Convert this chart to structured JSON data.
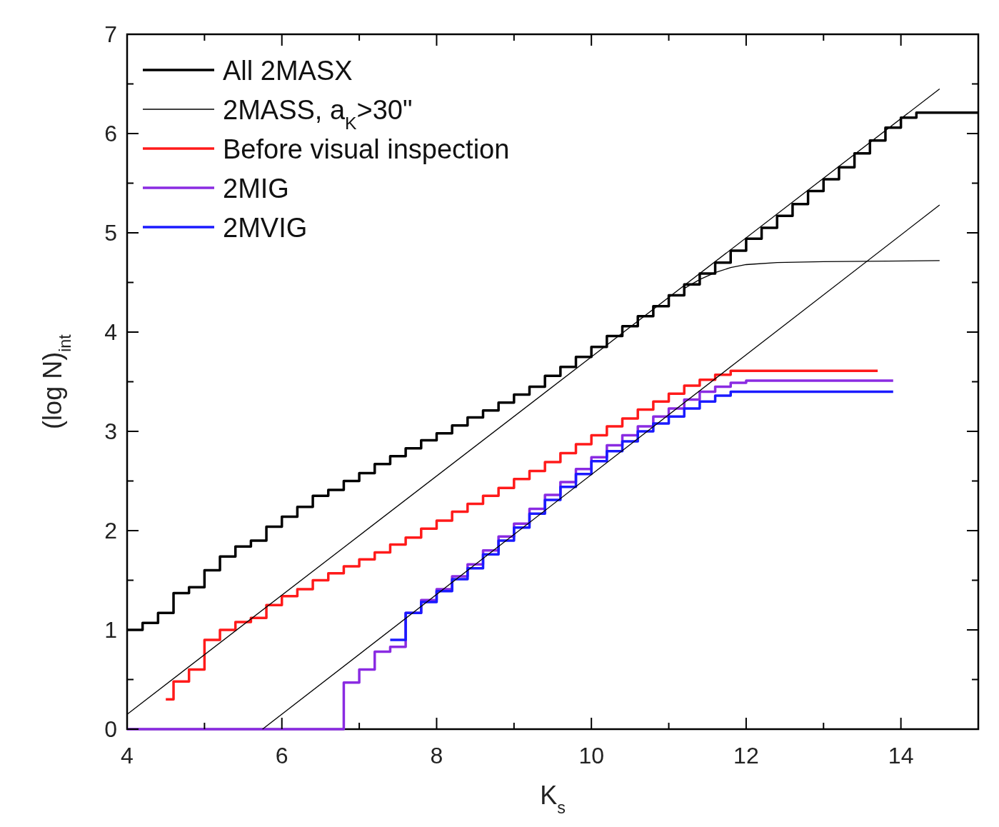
{
  "chart_data": {
    "type": "step",
    "xlabel": "K$_{s}$",
    "ylabel": "(log N)$_{int}$",
    "xlim": [
      4,
      15
    ],
    "ylim": [
      0,
      7
    ],
    "xticks": [
      4,
      {
        "value": 5,
        "label": null
      },
      6,
      {
        "value": 7,
        "label": null
      },
      8,
      {
        "value": 9,
        "label": null
      },
      10,
      {
        "value": 11,
        "label": null
      },
      12,
      {
        "value": 13,
        "label": null
      },
      14,
      {
        "value": 15,
        "label": null
      }
    ],
    "yticks": [
      0,
      {
        "value": 0.5,
        "label": null
      },
      1,
      {
        "value": 1.5,
        "label": null
      },
      2,
      {
        "value": 2.5,
        "label": null
      },
      3,
      {
        "value": 3.5,
        "label": null
      },
      4,
      {
        "value": 4.5,
        "label": null
      },
      5,
      {
        "value": 5.5,
        "label": null
      },
      6,
      {
        "value": 6.5,
        "label": null
      },
      7
    ],
    "legend": "top left",
    "grid": false,
    "series": [
      {
        "name": "All 2MASX",
        "color": "#000000",
        "x": [
          4,
          4.2,
          4.4,
          4.6,
          4.8,
          5,
          5.2,
          5.4,
          5.6,
          5.8,
          6,
          6.2,
          6.4,
          6.6,
          6.8,
          7,
          7.2,
          7.4,
          7.6,
          7.8,
          8,
          8.2,
          8.4,
          8.6,
          8.8,
          9,
          9.2,
          9.4,
          9.6,
          9.8,
          10,
          10.2,
          10.4,
          10.6,
          10.8,
          11,
          11.2,
          11.4,
          11.6,
          11.8,
          12,
          12.2,
          12.4,
          12.6,
          12.8,
          13,
          13.2,
          13.4,
          13.6,
          13.8,
          14,
          14.2,
          15
        ],
        "values": [
          1.0,
          1.07,
          1.17,
          1.37,
          1.43,
          1.6,
          1.74,
          1.84,
          1.9,
          2.04,
          2.14,
          2.24,
          2.35,
          2.41,
          2.5,
          2.58,
          2.67,
          2.75,
          2.83,
          2.91,
          2.98,
          3.06,
          3.14,
          3.21,
          3.29,
          3.37,
          3.45,
          3.56,
          3.65,
          3.75,
          3.85,
          3.96,
          4.06,
          4.16,
          4.26,
          4.37,
          4.48,
          4.59,
          4.7,
          4.82,
          4.94,
          5.05,
          5.17,
          5.29,
          5.42,
          5.54,
          5.66,
          5.8,
          5.93,
          6.06,
          6.16,
          6.21,
          6.21
        ]
      },
      {
        "name": "2MASS, a$_{K}$>30\"",
        "type": "line",
        "color": "#000000",
        "x": [
          11.2,
          11.4,
          11.6,
          11.8,
          12,
          12.4,
          13,
          14.5
        ],
        "values": [
          4.44,
          4.53,
          4.6,
          4.65,
          4.68,
          4.7,
          4.71,
          4.72
        ]
      },
      {
        "name": "Before visual inspection",
        "color": "#ff1a1a",
        "x": [
          4.5,
          4.6,
          4.8,
          5,
          5.2,
          5.4,
          5.6,
          5.8,
          6,
          6.2,
          6.4,
          6.6,
          6.8,
          7,
          7.2,
          7.4,
          7.6,
          7.8,
          8,
          8.2,
          8.4,
          8.6,
          8.8,
          9,
          9.2,
          9.4,
          9.6,
          9.8,
          10,
          10.2,
          10.4,
          10.6,
          10.8,
          11,
          11.2,
          11.4,
          11.6,
          11.8,
          13.7
        ],
        "values": [
          0.3,
          0.48,
          0.6,
          0.9,
          1.0,
          1.08,
          1.12,
          1.25,
          1.34,
          1.41,
          1.5,
          1.57,
          1.64,
          1.71,
          1.78,
          1.86,
          1.93,
          2.02,
          2.1,
          2.19,
          2.27,
          2.35,
          2.43,
          2.52,
          2.6,
          2.69,
          2.78,
          2.87,
          2.96,
          3.05,
          3.13,
          3.22,
          3.3,
          3.38,
          3.46,
          3.52,
          3.57,
          3.61,
          3.61
        ]
      },
      {
        "name": "2MIG",
        "color": "#8a2be2",
        "x": [
          4,
          6.8,
          7,
          7.2,
          7.4,
          7.6,
          7.8,
          8,
          8.2,
          8.4,
          8.6,
          8.8,
          9,
          9.2,
          9.4,
          9.6,
          9.8,
          10,
          10.2,
          10.4,
          10.6,
          10.8,
          11,
          11.2,
          11.4,
          11.6,
          11.8,
          12,
          13.9
        ],
        "values": [
          0,
          0.47,
          0.6,
          0.78,
          0.83,
          1.17,
          1.3,
          1.41,
          1.54,
          1.66,
          1.8,
          1.94,
          2.07,
          2.22,
          2.36,
          2.49,
          2.62,
          2.74,
          2.86,
          2.96,
          3.05,
          3.15,
          3.23,
          3.32,
          3.4,
          3.45,
          3.49,
          3.51,
          3.51
        ]
      },
      {
        "name": "2MVIG",
        "color": "#1a1aff",
        "x": [
          7.4,
          7.6,
          7.8,
          8,
          8.2,
          8.4,
          8.6,
          8.8,
          9,
          9.2,
          9.4,
          9.6,
          9.8,
          10,
          10.2,
          10.4,
          10.6,
          10.8,
          11,
          11.2,
          11.4,
          11.6,
          11.8,
          13.9
        ],
        "values": [
          0.9,
          1.17,
          1.28,
          1.39,
          1.51,
          1.62,
          1.76,
          1.9,
          2.03,
          2.17,
          2.31,
          2.44,
          2.57,
          2.7,
          2.8,
          2.9,
          3.0,
          3.08,
          3.15,
          3.23,
          3.3,
          3.36,
          3.4,
          3.4
        ]
      },
      {
        "type": "line",
        "color": "#000000",
        "x": [
          4,
          14.5
        ],
        "values": [
          0.15,
          6.45
        ]
      },
      {
        "type": "line",
        "color": "#000000",
        "x": [
          5.75,
          14.5
        ],
        "values": [
          0,
          5.28
        ]
      }
    ]
  }
}
